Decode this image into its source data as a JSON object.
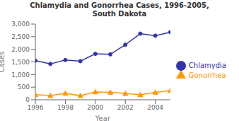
{
  "chart_data": {
    "type": "line",
    "title": "Chlamydia and Gonorrhea Cases, 1996-2005,\nSouth Dakota",
    "x_label": "Year",
    "y_label": "Cases",
    "x": [
      1996,
      1997,
      1998,
      1999,
      2000,
      2001,
      2002,
      2003,
      2004,
      2005
    ],
    "series": [
      {
        "name": "Chlamydia",
        "color": "#3333aa",
        "marker": "circle",
        "values": [
          1550,
          1420,
          1575,
          1530,
          1820,
          1800,
          2180,
          2620,
          2540,
          2680
        ]
      },
      {
        "name": "Gonorrhea",
        "color": "#ff9900",
        "marker": "triangle",
        "values": [
          200,
          165,
          255,
          165,
          310,
          295,
          250,
          195,
          295,
          365
        ]
      }
    ],
    "xlim": [
      1996,
      2005
    ],
    "xticks": [
      1996,
      1998,
      2000,
      2002,
      2004
    ],
    "ylim": [
      0,
      3000
    ],
    "yticks": [
      0,
      500,
      {
        "value": 1000,
        "label": "1,000"
      },
      {
        "value": 1500,
        "label": "1,500"
      },
      {
        "value": 2000,
        "label": "2,000"
      },
      {
        "value": 2500,
        "label": "2,500"
      },
      {
        "value": 3000,
        "label": "3,000"
      }
    ],
    "grid": false,
    "legend": "right"
  }
}
